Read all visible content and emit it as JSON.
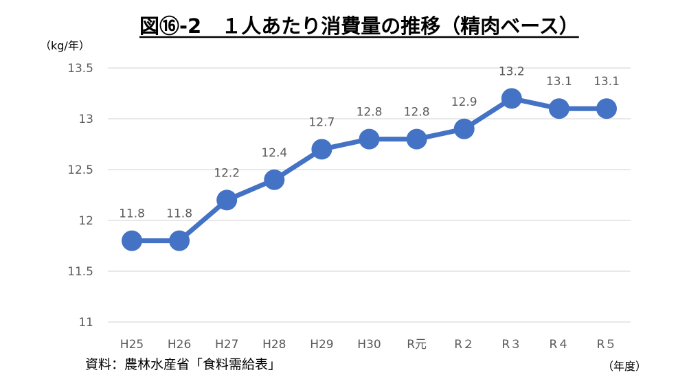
{
  "chart_data": {
    "type": "line",
    "title": "図⑯-2　１人あたり消費量の推移（精肉ベース）",
    "ylabel": "（kg/年）",
    "xlabel": "（年度）",
    "source": "資料：農林水産省「食料需給表」",
    "categories": [
      "H25",
      "H26",
      "H27",
      "H28",
      "H29",
      "H30",
      "R元",
      "R２",
      "R３",
      "R４",
      "R５"
    ],
    "series": [
      {
        "name": "1人あたり消費量",
        "values": [
          11.8,
          11.8,
          12.2,
          12.4,
          12.7,
          12.8,
          12.8,
          12.9,
          13.2,
          13.1,
          13.1
        ],
        "labels": [
          "11.8",
          "11.8",
          "12.2",
          "12.4",
          "12.7",
          "12.8",
          "12.8",
          "12.9",
          "13.2",
          "13.1",
          "13.1"
        ]
      }
    ],
    "ylim": [
      11,
      13.5
    ],
    "yticks": [
      "11",
      "11.5",
      "12",
      "12.5",
      "13",
      "13.5"
    ],
    "ytick_values": [
      11,
      11.5,
      12,
      12.5,
      13,
      13.5
    ],
    "grid": true,
    "colors": {
      "line": "#4472c4",
      "grid": "#d9d9d9",
      "underline": "#000000"
    }
  }
}
